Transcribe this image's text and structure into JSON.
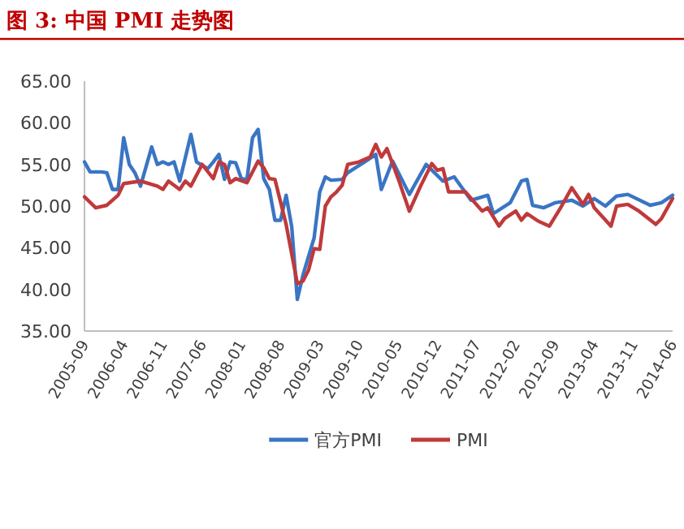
{
  "chart_data": {
    "type": "line",
    "title": "图 3: 中国 PMI 走势图",
    "xlim": [
      "2005-09",
      "2014-06"
    ],
    "xticks": [
      "2005-09",
      "2006-04",
      "2006-11",
      "2007-06",
      "2008-01",
      "2008-08",
      "2009-03",
      "2009-10",
      "2010-05",
      "2010-12",
      "2011-07",
      "2012-02",
      "2012-09",
      "2013-04",
      "2013-11",
      "2014-06"
    ],
    "ylim": [
      35,
      65
    ],
    "yticks": [
      {
        "value": 35,
        "label": "35.00"
      },
      {
        "value": 40,
        "label": "40.00"
      },
      {
        "value": 45,
        "label": "45.00"
      },
      {
        "value": 50,
        "label": "50.00"
      },
      {
        "value": 55,
        "label": "55.00"
      },
      {
        "value": 60,
        "label": "60.00"
      },
      {
        "value": 65,
        "label": "65.00"
      }
    ],
    "grid": false,
    "legend": "bottom",
    "series": [
      {
        "name": "官方PMI",
        "color": "#3a75c4",
        "x": [
          "2005-09",
          "2005-10",
          "2005-12",
          "2006-01",
          "2006-02",
          "2006-03",
          "2006-04",
          "2006-05",
          "2006-06",
          "2006-07",
          "2006-09",
          "2006-10",
          "2006-11",
          "2006-12",
          "2007-01",
          "2007-02",
          "2007-04",
          "2007-05",
          "2007-07",
          "2007-08",
          "2007-09",
          "2007-10",
          "2007-11",
          "2007-12",
          "2008-01",
          "2008-02",
          "2008-03",
          "2008-04",
          "2008-05",
          "2008-06",
          "2008-07",
          "2008-08",
          "2008-09",
          "2008-10",
          "2008-11",
          "2008-12",
          "2009-02",
          "2009-03",
          "2009-04",
          "2009-05",
          "2009-07",
          "2009-08",
          "2009-11",
          "2010-01",
          "2010-02",
          "2010-04",
          "2010-07",
          "2010-10",
          "2011-01",
          "2011-03",
          "2011-06",
          "2011-09",
          "2011-10",
          "2012-01",
          "2012-03",
          "2012-04",
          "2012-05",
          "2012-07",
          "2012-09",
          "2012-12",
          "2013-02",
          "2013-04",
          "2013-06",
          "2013-08",
          "2013-10",
          "2014-02",
          "2014-04",
          "2014-06"
        ],
        "values": [
          55.3,
          54.1,
          54.1,
          54.0,
          52.0,
          52.0,
          58.2,
          55.0,
          54.0,
          52.4,
          57.1,
          55.0,
          55.3,
          55.0,
          55.3,
          53.0,
          58.6,
          55.3,
          54.5,
          55.3,
          56.2,
          53.2,
          55.3,
          55.2,
          53.3,
          53.2,
          58.2,
          59.2,
          53.3,
          52.0,
          48.3,
          48.3,
          51.3,
          47.5,
          38.8,
          41.7,
          46.2,
          51.7,
          53.5,
          53.1,
          53.2,
          54.0,
          55.3,
          56.2,
          52.0,
          55.4,
          51.4,
          55.0,
          53.0,
          53.5,
          50.7,
          51.3,
          49.1,
          50.4,
          53.0,
          53.2,
          50.1,
          49.8,
          50.4,
          50.7,
          50.0,
          50.9,
          50.0,
          51.2,
          51.4,
          50.1,
          50.4,
          51.3
        ]
      },
      {
        "name": "PMI",
        "color": "#c0393b",
        "x": [
          "2005-09",
          "2005-11",
          "2006-01",
          "2006-03",
          "2006-04",
          "2006-07",
          "2006-10",
          "2006-11",
          "2006-12",
          "2007-02",
          "2007-03",
          "2007-04",
          "2007-05",
          "2007-06",
          "2007-08",
          "2007-09",
          "2007-10",
          "2007-11",
          "2007-12",
          "2008-02",
          "2008-04",
          "2008-05",
          "2008-06",
          "2008-07",
          "2008-09",
          "2008-11",
          "2008-12",
          "2009-01",
          "2009-02",
          "2009-03",
          "2009-04",
          "2009-05",
          "2009-06",
          "2009-07",
          "2009-08",
          "2009-10",
          "2009-12",
          "2010-01",
          "2010-02",
          "2010-03",
          "2010-05",
          "2010-07",
          "2010-09",
          "2010-11",
          "2010-12",
          "2011-01",
          "2011-02",
          "2011-05",
          "2011-08",
          "2011-09",
          "2011-11",
          "2011-12",
          "2012-02",
          "2012-03",
          "2012-04",
          "2012-06",
          "2012-08",
          "2012-10",
          "2012-12",
          "2013-02",
          "2013-03",
          "2013-04",
          "2013-07",
          "2013-08",
          "2013-10",
          "2013-12",
          "2014-03",
          "2014-04",
          "2014-06"
        ],
        "values": [
          51.1,
          49.8,
          50.1,
          51.3,
          52.7,
          53.0,
          52.4,
          52.0,
          53.0,
          52.0,
          53.0,
          52.4,
          53.7,
          55.0,
          53.3,
          55.3,
          55.0,
          52.8,
          53.3,
          52.8,
          55.4,
          54.6,
          53.3,
          53.2,
          47.8,
          40.7,
          41.0,
          42.3,
          44.9,
          44.8,
          50.0,
          51.1,
          51.7,
          52.5,
          55.0,
          55.3,
          55.9,
          57.4,
          55.9,
          56.9,
          53.3,
          49.4,
          52.4,
          55.1,
          54.3,
          54.5,
          51.7,
          51.7,
          49.4,
          49.8,
          47.6,
          48.5,
          49.4,
          48.3,
          49.1,
          48.2,
          47.6,
          49.8,
          52.2,
          50.2,
          51.4,
          49.8,
          47.6,
          50.0,
          50.2,
          49.4,
          47.8,
          48.5,
          50.9
        ]
      }
    ]
  }
}
